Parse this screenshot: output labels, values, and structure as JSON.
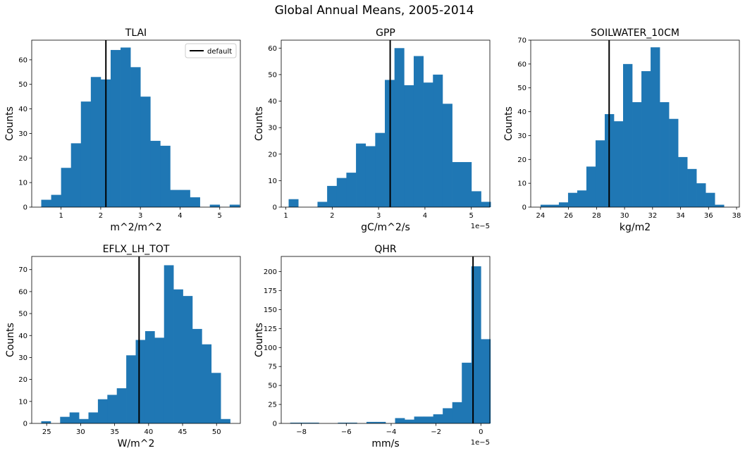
{
  "figure": {
    "title": "Global Annual Means, 2005-2014",
    "bar_color": "#1f77b4",
    "default_line_color": "#000000",
    "legend_label": "default"
  },
  "chart_data": [
    {
      "type": "bar",
      "title": "TLAI",
      "xlabel": "m^2/m^2",
      "ylabel": "Counts",
      "xlim": [
        0.26,
        5.52
      ],
      "ylim": [
        0,
        68
      ],
      "xticks": [
        {
          "v": 1,
          "label": "1"
        },
        {
          "v": 2,
          "label": "2"
        },
        {
          "v": 3,
          "label": "3"
        },
        {
          "v": 4,
          "label": "4"
        },
        {
          "v": 5,
          "label": "5"
        }
      ],
      "yticks": [
        0,
        10,
        20,
        30,
        40,
        50,
        60
      ],
      "offset_label": "",
      "bin_start": 0.5,
      "bin_width": 0.25,
      "counts": [
        3,
        5,
        16,
        26,
        43,
        53,
        52,
        64,
        65,
        57,
        45,
        27,
        25,
        7,
        7,
        4,
        0,
        1,
        0,
        1
      ],
      "default_x": 2.13,
      "legend": true,
      "grid": false
    },
    {
      "type": "bar",
      "title": "GPP",
      "xlabel": "gC/m^2/s",
      "ylabel": "Counts",
      "xlim": [
        0.9,
        5.4
      ],
      "ylim": [
        0,
        63
      ],
      "xticks": [
        {
          "v": 1,
          "label": "1"
        },
        {
          "v": 2,
          "label": "2"
        },
        {
          "v": 3,
          "label": "3"
        },
        {
          "v": 4,
          "label": "4"
        },
        {
          "v": 5,
          "label": "5"
        }
      ],
      "yticks": [
        0,
        10,
        20,
        30,
        40,
        50,
        60
      ],
      "offset_label": "1e−5",
      "bin_start": 1.06,
      "bin_width": 0.2075,
      "counts": [
        3,
        0,
        0,
        2,
        8,
        11,
        13,
        24,
        23,
        28,
        48,
        60,
        46,
        57,
        47,
        50,
        39,
        17,
        17,
        6,
        2
      ],
      "default_x": 3.25,
      "legend": false,
      "grid": false
    },
    {
      "type": "bar",
      "title": "SOILWATER_10CM",
      "xlabel": "kg/m2",
      "ylabel": "Counts",
      "xlim": [
        23.3,
        38.2
      ],
      "ylim": [
        0,
        70
      ],
      "xticks": [
        {
          "v": 24,
          "label": "24"
        },
        {
          "v": 26,
          "label": "26"
        },
        {
          "v": 28,
          "label": "28"
        },
        {
          "v": 30,
          "label": "30"
        },
        {
          "v": 32,
          "label": "32"
        },
        {
          "v": 34,
          "label": "34"
        },
        {
          "v": 36,
          "label": "36"
        },
        {
          "v": 38,
          "label": "38"
        }
      ],
      "yticks": [
        0,
        10,
        20,
        30,
        40,
        50,
        60,
        70
      ],
      "offset_label": "",
      "bin_start": 24.0,
      "bin_width": 0.655,
      "counts": [
        1,
        1,
        2,
        6,
        7,
        17,
        28,
        39,
        36,
        60,
        44,
        57,
        67,
        44,
        37,
        21,
        16,
        10,
        6,
        1
      ],
      "default_x": 28.9,
      "legend": false,
      "grid": false
    },
    {
      "type": "bar",
      "title": "EFLX_LH_TOT",
      "xlabel": "W/m^2",
      "ylabel": "Counts",
      "xlim": [
        22.8,
        53.5
      ],
      "ylim": [
        0,
        76
      ],
      "xticks": [
        {
          "v": 25,
          "label": "25"
        },
        {
          "v": 30,
          "label": "30"
        },
        {
          "v": 35,
          "label": "35"
        },
        {
          "v": 40,
          "label": "40"
        },
        {
          "v": 45,
          "label": "45"
        },
        {
          "v": 50,
          "label": "50"
        }
      ],
      "yticks": [
        0,
        10,
        20,
        30,
        40,
        50,
        60,
        70
      ],
      "offset_label": "",
      "bin_start": 24.2,
      "bin_width": 1.39,
      "counts": [
        1,
        0,
        3,
        5,
        2,
        5,
        11,
        13,
        16,
        31,
        38,
        42,
        39,
        72,
        61,
        58,
        43,
        36,
        23,
        2
      ],
      "default_x": 38.6,
      "legend": false,
      "grid": false
    },
    {
      "type": "bar",
      "title": "QHR",
      "xlabel": "mm/s",
      "ylabel": "Counts",
      "xlim": [
        -8.9,
        0.4
      ],
      "ylim": [
        0,
        220
      ],
      "xticks": [
        {
          "v": -8,
          "label": "−8"
        },
        {
          "v": -6,
          "label": "−6"
        },
        {
          "v": -4,
          "label": "−4"
        },
        {
          "v": -2,
          "label": "−2"
        },
        {
          "v": 0,
          "label": "0"
        }
      ],
      "yticks": [
        0,
        25,
        50,
        75,
        100,
        125,
        150,
        175,
        200
      ],
      "offset_label": "1e−5",
      "bin_start": -8.5,
      "bin_width": 0.425,
      "counts": [
        1,
        1,
        1,
        0,
        0,
        1,
        1,
        0,
        2,
        2,
        0,
        7,
        5,
        9,
        9,
        12,
        20,
        28,
        80,
        207,
        111
      ],
      "default_x": -0.35,
      "legend": false,
      "grid": false
    }
  ]
}
